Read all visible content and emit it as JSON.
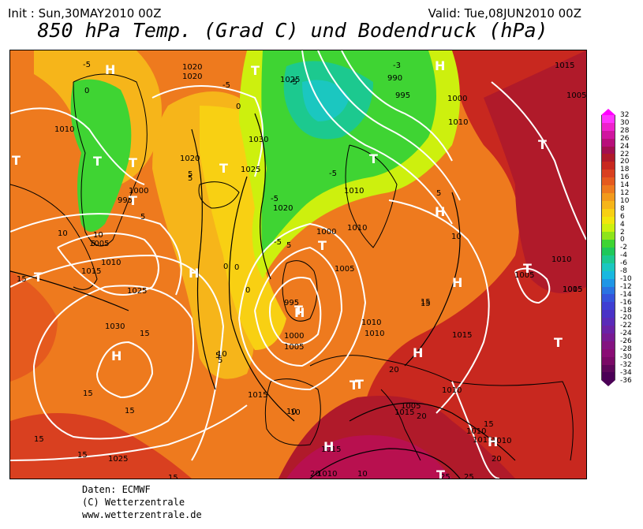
{
  "header": {
    "init": "Init : Sun,30MAY2010 00Z",
    "valid": "Valid: Tue,08JUN2010 00Z",
    "title": "850 hPa Temp. (Grad C) und Bodendruck (hPa)"
  },
  "footer": {
    "line1": "Daten: ECMWF",
    "line2": "(C) Wetterzentrale",
    "line3": "www.wetterzentrale.de"
  },
  "colors": {
    "ocean_base": "#ee7a1e",
    "isobar": "#ffffff",
    "coast": "#000000"
  },
  "colorbar": {
    "labels": [
      "32",
      "30",
      "28",
      "26",
      "24",
      "22",
      "20",
      "18",
      "16",
      "14",
      "12",
      "10",
      "8",
      "6",
      "4",
      "2",
      "0",
      "-2",
      "-4",
      "-6",
      "-8",
      "-10",
      "-12",
      "-14",
      "-16",
      "-18",
      "-20",
      "-22",
      "-24",
      "-26",
      "-28",
      "-30",
      "-32",
      "-34",
      "-36"
    ],
    "colors": [
      "#ff33ff",
      "#ee22cc",
      "#d0159f",
      "#b80f7a",
      "#a3104f",
      "#b01a2a",
      "#c8281f",
      "#d94020",
      "#e55a1e",
      "#ee7a1e",
      "#f29a1c",
      "#f6b51a",
      "#f8d013",
      "#f2e60c",
      "#cdf00e",
      "#8ee41a",
      "#3fd433",
      "#1fc85a",
      "#1cc98f",
      "#1bc7c0",
      "#19b8e0",
      "#1f96e6",
      "#2a73e2",
      "#3554dc",
      "#3f3fd3",
      "#4a32c6",
      "#5a2ab8",
      "#6a22a6",
      "#781a92",
      "#831380",
      "#8a0d74",
      "#7a0a66",
      "#5e075a",
      "#4b0056"
    ]
  },
  "map": {
    "pressure_labels": [
      "1020",
      "1020",
      "1025",
      "990",
      "995",
      "1000",
      "1015",
      "1005",
      "1010",
      "1010",
      "1030",
      "1025",
      "1020",
      "1020",
      "1010",
      "1000",
      "995",
      "1005",
      "1010",
      "1015",
      "1000",
      "1010",
      "1005",
      "1025",
      "1030",
      "1005",
      "1010",
      "995",
      "1000",
      "1005",
      "1010",
      "1010",
      "1015",
      "1015",
      "1015",
      "1015",
      "1010",
      "1005",
      "1010",
      "1025",
      "1010",
      "1015",
      "1010",
      "1015",
      "1005"
    ],
    "temp_labels": [
      "-5",
      "0",
      "0",
      "-5",
      "-3",
      "-5",
      "-5",
      "-5",
      "5",
      "-5",
      "0",
      "5",
      "0",
      "10",
      "5",
      "10",
      "5",
      "15",
      "15",
      "15",
      "15",
      "20",
      "20",
      "5",
      "10",
      "15",
      "20",
      "25",
      "15",
      "10",
      "20",
      "25",
      "5",
      "15",
      "5",
      "10",
      "10",
      "15",
      "15",
      "0",
      "15",
      "5",
      "10"
    ],
    "high_low": [
      "H",
      "H",
      "T",
      "T",
      "T",
      "T",
      "T",
      "T",
      "T",
      "H",
      "H",
      "H",
      "H",
      "T",
      "T",
      "T",
      "H",
      "T",
      "H",
      "T",
      "T",
      "H",
      "T",
      "T",
      "H",
      "T"
    ]
  }
}
